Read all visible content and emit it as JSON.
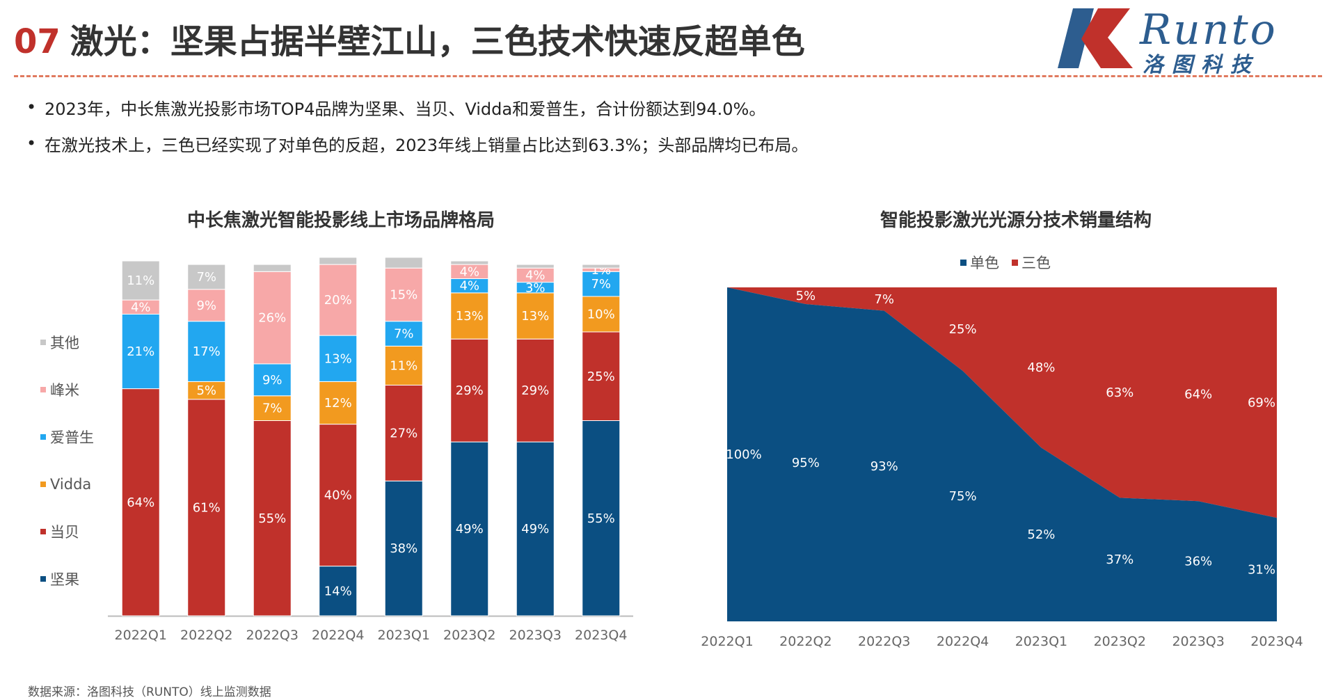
{
  "header": {
    "title_number": "07",
    "title_text": "激光：坚果占据半壁江山，三色技术快速反超单色",
    "logo_text": "Runto",
    "logo_subtext": "洛图科技"
  },
  "bullets": [
    "2023年，中长焦激光投影市场TOP4品牌为坚果、当贝、Vidda和爱普生，合计份额达到94.0%。",
    "在激光技术上，三色已经实现了对单色的反超，2023年线上销量占比达到63.3%；头部品牌均已布局。"
  ],
  "source": "数据来源：洛图科技（RUNTO）线上监测数据",
  "colors": {
    "jianguo": "#0b4f82",
    "dangbei": "#c0312b",
    "vidda": "#f29a1f",
    "epson": "#22a7f0",
    "fengmi": "#f7a8a8",
    "other": "#c8c8c8",
    "mono": "#0b4f82",
    "tri": "#c0312b"
  },
  "chart_data": [
    {
      "type": "bar",
      "stacked": true,
      "title": "中长焦激光智能投影线上市场品牌格局",
      "categories": [
        "2022Q1",
        "2022Q2",
        "2022Q3",
        "2022Q4",
        "2023Q1",
        "2023Q2",
        "2023Q3",
        "2023Q4"
      ],
      "ylim": [
        0,
        100
      ],
      "legend_position": "left",
      "series": [
        {
          "name": "坚果",
          "color": "#0b4f82",
          "values": [
            0,
            0,
            0,
            14,
            38,
            49,
            49,
            55
          ],
          "labels": [
            "",
            "",
            "",
            "14%",
            "38%",
            "49%",
            "49%",
            "55%"
          ]
        },
        {
          "name": "当贝",
          "color": "#c0312b",
          "values": [
            64,
            61,
            55,
            40,
            27,
            29,
            29,
            25
          ],
          "labels": [
            "64%",
            "61%",
            "55%",
            "40%",
            "27%",
            "29%",
            "29%",
            "25%"
          ]
        },
        {
          "name": "Vidda",
          "color": "#f29a1f",
          "values": [
            0,
            5,
            7,
            12,
            11,
            13,
            13,
            10
          ],
          "labels": [
            "",
            "5%",
            "7%",
            "12%",
            "11%",
            "13%",
            "13%",
            "10%"
          ]
        },
        {
          "name": "爱普生",
          "color": "#22a7f0",
          "values": [
            21,
            17,
            9,
            13,
            7,
            4,
            3,
            7
          ],
          "labels": [
            "21%",
            "17%",
            "9%",
            "13%",
            "7%",
            "4%",
            "3%",
            "7%"
          ]
        },
        {
          "name": "峰米",
          "color": "#f7a8a8",
          "values": [
            4,
            9,
            26,
            20,
            15,
            4,
            4,
            1
          ],
          "labels": [
            "4%",
            "9%",
            "26%",
            "20%",
            "15%",
            "4%",
            "4%",
            "1%"
          ]
        },
        {
          "name": "其他",
          "color": "#c8c8c8",
          "values": [
            11,
            7,
            2,
            2,
            3,
            1,
            1,
            1
          ],
          "labels": [
            "11%",
            "7%",
            "",
            "",
            "",
            "",
            "",
            ""
          ]
        }
      ]
    },
    {
      "type": "area",
      "stacked": true,
      "title": "智能投影激光光源分技术销量结构",
      "categories": [
        "2022Q1",
        "2022Q2",
        "2022Q3",
        "2022Q4",
        "2023Q1",
        "2023Q2",
        "2023Q3",
        "2023Q4"
      ],
      "ylim": [
        0,
        100
      ],
      "legend_position": "top",
      "series": [
        {
          "name": "单色",
          "color": "#0b4f82",
          "values": [
            100,
            95,
            93,
            75,
            52,
            37,
            36,
            31
          ],
          "labels": [
            "100%",
            "95%",
            "93%",
            "75%",
            "52%",
            "37%",
            "36%",
            "31%"
          ]
        },
        {
          "name": "三色",
          "color": "#c0312b",
          "values": [
            0,
            5,
            7,
            25,
            48,
            63,
            64,
            69
          ],
          "labels": [
            "",
            "5%",
            "7%",
            "25%",
            "48%",
            "63%",
            "64%",
            "69%"
          ]
        }
      ]
    }
  ]
}
